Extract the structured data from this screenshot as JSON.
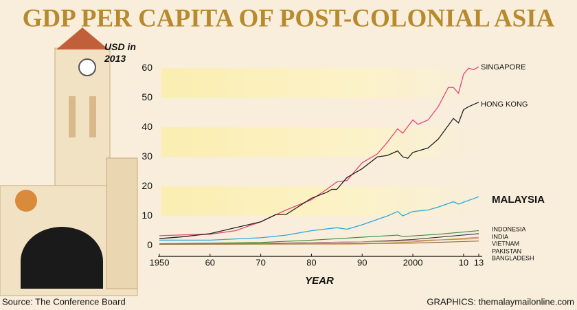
{
  "chart_data": {
    "type": "line",
    "title": "GDP PER CAPITA OF POST-COLONIAL ASIA",
    "y_label": "USD in 2013",
    "x_label": "YEAR",
    "source": "Source: The Conference Board",
    "credit": "GRAPHICS: themalaymailonline.com",
    "xlim": [
      1950,
      2013
    ],
    "ylim": [
      -3.7,
      61
    ],
    "xticks": [
      1950,
      {
        "value": 1960,
        "label": "60"
      },
      {
        "value": 1970,
        "label": "70"
      },
      {
        "value": 1980,
        "label": "80"
      },
      {
        "value": 1990,
        "label": "90"
      },
      2000,
      {
        "value": 2010,
        "label": "10"
      },
      {
        "value": 2013,
        "label": "13"
      }
    ],
    "yticks": [
      0,
      10,
      20,
      30,
      40,
      50,
      60
    ],
    "grid": "bands",
    "series": [
      {
        "name": "SINGAPORE",
        "color": "#e8457a",
        "x": [
          1950,
          1955,
          1960,
          1965,
          1970,
          1975,
          1980,
          1983,
          1985,
          1987,
          1990,
          1993,
          1995,
          1997,
          1998,
          2000,
          2001,
          2003,
          2005,
          2007,
          2008,
          2009,
          2010,
          2011,
          2012,
          2013
        ],
        "values": [
          3.3,
          3.6,
          3.8,
          5,
          8,
          12,
          15.5,
          19,
          21.5,
          22,
          28,
          31,
          35,
          39.5,
          38,
          42.5,
          41,
          42.5,
          47,
          53.5,
          53.5,
          51.5,
          58,
          60,
          59.5,
          60.5
        ]
      },
      {
        "name": "HONG KONG",
        "color": "#222222",
        "x": [
          1950,
          1955,
          1960,
          1965,
          1970,
          1973,
          1975,
          1980,
          1983,
          1984,
          1985,
          1987,
          1990,
          1993,
          1995,
          1997,
          1998,
          1999,
          2000,
          2003,
          2005,
          2008,
          2009,
          2010,
          2011,
          2013
        ],
        "values": [
          2.3,
          3,
          4,
          6,
          8,
          10.5,
          10.5,
          16,
          18,
          19,
          19,
          23,
          26,
          30,
          30.5,
          32,
          30,
          29.5,
          31.5,
          33,
          36,
          43,
          41.5,
          46,
          47,
          48.5
        ]
      },
      {
        "name": "MALAYSIA",
        "color": "#29a8e0",
        "x": [
          1950,
          1960,
          1965,
          1970,
          1975,
          1980,
          1985,
          1987,
          1990,
          1995,
          1997,
          1998,
          2000,
          2003,
          2005,
          2008,
          2009,
          2013
        ],
        "values": [
          1.8,
          1.8,
          2.2,
          2.6,
          3.5,
          5,
          6,
          5.5,
          7,
          10,
          11.5,
          10,
          11.5,
          12,
          13,
          14.8,
          14,
          16.5
        ]
      },
      {
        "name": "INDONESIA",
        "color": "#3a8a3a",
        "x": [
          1950,
          1970,
          1980,
          1990,
          1997,
          1998,
          2005,
          2013
        ],
        "values": [
          0.6,
          1,
          1.8,
          2.8,
          3.5,
          3,
          3.8,
          5
        ]
      },
      {
        "name": "INDIA",
        "color": "#333333",
        "x": [
          1950,
          1970,
          1990,
          2000,
          2013
        ],
        "values": [
          0.5,
          0.7,
          1.2,
          2,
          4
        ]
      },
      {
        "name": "VIETNAM",
        "color": "#d89a3a",
        "x": [
          1950,
          1990,
          2000,
          2013
        ],
        "values": [
          0.4,
          0.5,
          1.2,
          2.8
        ]
      },
      {
        "name": "PAKISTAN",
        "color": "#c08080",
        "x": [
          1950,
          1970,
          1990,
          2000,
          2013
        ],
        "values": [
          0.5,
          0.7,
          1.2,
          1.6,
          2.3
        ]
      },
      {
        "name": "BANGLADESH",
        "color": "#8a6d3b",
        "x": [
          1950,
          1970,
          1990,
          2000,
          2013
        ],
        "values": [
          0.4,
          0.5,
          0.6,
          0.8,
          1.5
        ]
      }
    ]
  }
}
